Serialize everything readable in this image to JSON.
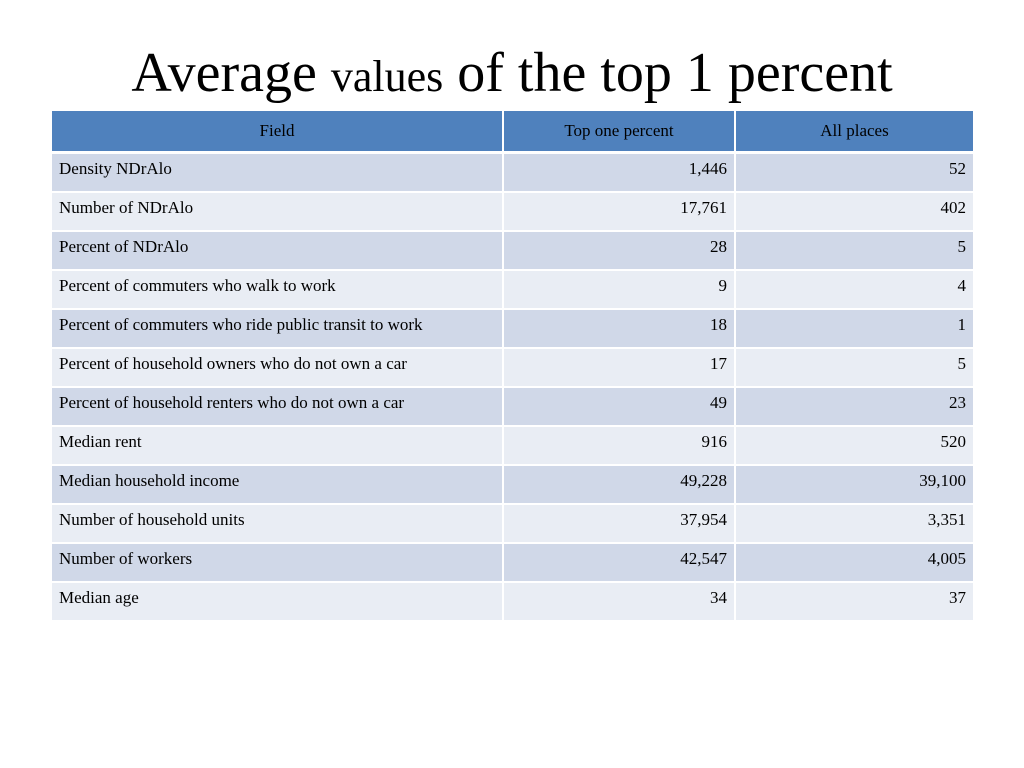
{
  "title": {
    "part1": "Average ",
    "part2": "values",
    "part3": " of the top 1 percent"
  },
  "table": {
    "headers": [
      "Field",
      "Top one percent",
      "All places"
    ],
    "rows": [
      {
        "field": "Density NDrAlo",
        "top": "1,446",
        "all": "52"
      },
      {
        "field": "Number of NDrAlo",
        "top": "17,761",
        "all": "402"
      },
      {
        "field": "Percent of NDrAlo",
        "top": "28",
        "all": "5"
      },
      {
        "field": "Percent of commuters who walk to work",
        "top": "9",
        "all": "4"
      },
      {
        "field": "Percent of commuters who ride public transit to work",
        "top": "18",
        "all": "1"
      },
      {
        "field": "Percent of household owners who do not own a car",
        "top": "17",
        "all": "5"
      },
      {
        "field": "Percent of household renters who do not own a car",
        "top": "49",
        "all": "23"
      },
      {
        "field": "Median rent",
        "top": "916",
        "all": "520"
      },
      {
        "field": "Median household income",
        "top": "49,228",
        "all": "39,100"
      },
      {
        "field": "Number of household units",
        "top": "37,954",
        "all": "3,351"
      },
      {
        "field": "Number of workers",
        "top": "42,547",
        "all": "4,005"
      },
      {
        "field": "Median age",
        "top": "34",
        "all": "37"
      }
    ]
  },
  "colors": {
    "header_bg": "#4f81bd",
    "row_odd_bg": "#d0d8e8",
    "row_even_bg": "#e9edf4"
  }
}
